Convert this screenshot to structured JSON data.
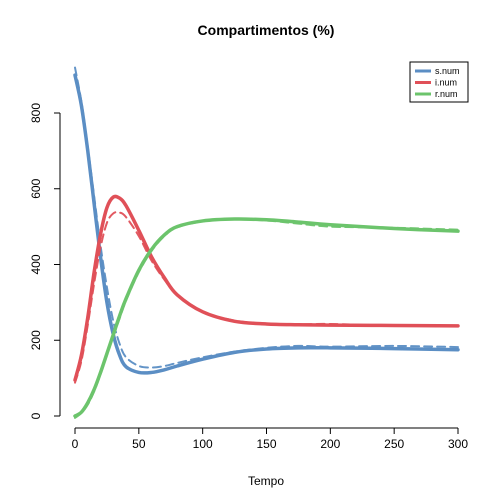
{
  "chart_data": {
    "type": "line",
    "title": "Compartimentos (%)",
    "xlabel": "Tempo",
    "ylabel": "",
    "xlim": [
      0,
      300
    ],
    "ylim": [
      -30,
      950
    ],
    "x_ticks": [
      0,
      50,
      100,
      150,
      200,
      250,
      300
    ],
    "y_ticks": [
      0,
      200,
      400,
      600,
      800
    ],
    "grid": false,
    "legend_position": "top-right",
    "series": [
      {
        "name": "s.num",
        "color": "#5b8ec4",
        "x": [
          0,
          5,
          10,
          15,
          20,
          25,
          30,
          35,
          40,
          50,
          60,
          70,
          80,
          100,
          125,
          150,
          175,
          200,
          250,
          300
        ],
        "solid": [
          900,
          820,
          700,
          560,
          420,
          300,
          215,
          160,
          130,
          115,
          115,
          122,
          132,
          150,
          168,
          177,
          180,
          180,
          178,
          175
        ],
        "dashed": [
          920,
          830,
          710,
          580,
          450,
          340,
          250,
          190,
          155,
          132,
          128,
          132,
          140,
          155,
          170,
          180,
          185,
          183,
          185,
          182
        ]
      },
      {
        "name": "i.num",
        "color": "#e05058",
        "x": [
          0,
          5,
          10,
          15,
          20,
          25,
          30,
          35,
          40,
          50,
          60,
          70,
          80,
          100,
          125,
          150,
          175,
          200,
          250,
          300
        ],
        "solid": [
          95,
          160,
          260,
          380,
          480,
          550,
          578,
          575,
          555,
          490,
          420,
          365,
          320,
          275,
          250,
          243,
          241,
          240,
          239,
          238
        ],
        "dashed": [
          88,
          145,
          240,
          350,
          445,
          510,
          535,
          537,
          525,
          475,
          410,
          360,
          320,
          275,
          252,
          244,
          242,
          243,
          238,
          238
        ]
      },
      {
        "name": "r.num",
        "color": "#6cc46c",
        "x": [
          0,
          5,
          10,
          15,
          20,
          25,
          30,
          35,
          40,
          50,
          60,
          70,
          80,
          100,
          125,
          150,
          175,
          200,
          250,
          300
        ],
        "solid": [
          0,
          10,
          35,
          70,
          115,
          165,
          215,
          265,
          310,
          385,
          440,
          478,
          500,
          515,
          520,
          518,
          512,
          505,
          495,
          488
        ],
        "dashed": [
          -5,
          8,
          30,
          65,
          110,
          160,
          210,
          258,
          305,
          380,
          436,
          475,
          498,
          514,
          519,
          516,
          508,
          500,
          497,
          492
        ]
      }
    ]
  }
}
